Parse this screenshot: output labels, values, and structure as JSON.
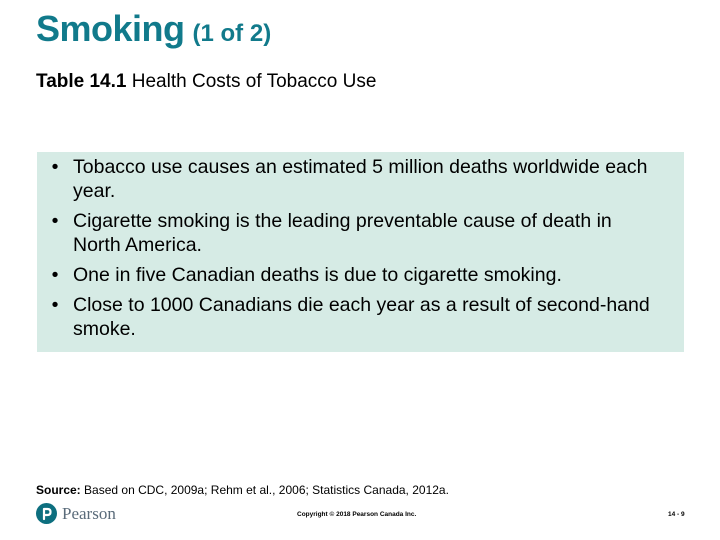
{
  "slide": {
    "title": "Smoking",
    "title_part": "(1 of 2)",
    "table_label": "Table 14.1",
    "table_title": "Health Costs of Tobacco Use"
  },
  "bullets": [
    {
      "text": "Tobacco use causes an estimated 5 million deaths worldwide each year."
    },
    {
      "text": "Cigarette smoking is the leading preventable cause of death in North America."
    },
    {
      "text": "One in five Canadian deaths is due to cigarette smoking."
    },
    {
      "text": "Close to 1000 Canadians die each year as a result of second-hand smoke."
    }
  ],
  "bullet_glyph": "•",
  "source": {
    "label": "Source:",
    "text": "Based on CDC, 2009a; Rehm et al., 2006; Statistics Canada, 2012a."
  },
  "footer": {
    "logo_text": "Pearson",
    "copyright": "Copyright © 2018 Pearson Canada Inc.",
    "page": "14 - 9"
  },
  "colors": {
    "title": "#117a8b",
    "box_background": "#d6ebe5",
    "logo_mark": "#0d6f7f"
  }
}
